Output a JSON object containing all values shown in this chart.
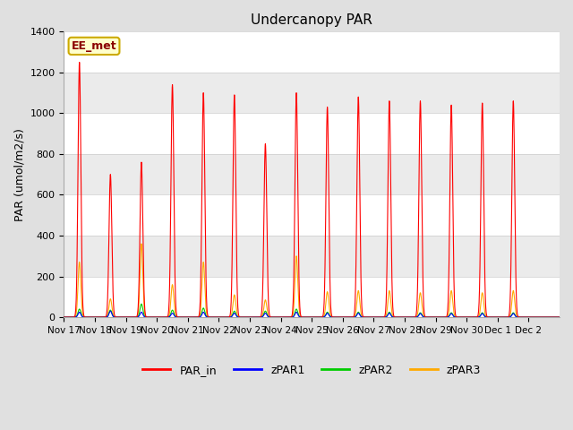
{
  "title": "Undercanopy PAR",
  "ylabel": "PAR (umol/m2/s)",
  "ylim": [
    0,
    1400
  ],
  "yticks": [
    0,
    200,
    400,
    600,
    800,
    1000,
    1200,
    1400
  ],
  "fig_bg": "#e0e0e0",
  "plot_bg": "#ffffff",
  "band_color": "#ebebeb",
  "annotation_text": "EE_met",
  "annotation_bg": "#ffffcc",
  "annotation_border": "#ccaa00",
  "legend_items": [
    "PAR_in",
    "zPAR1",
    "zPAR2",
    "zPAR3"
  ],
  "line_colors": {
    "PAR_in": "#ff0000",
    "zPAR1": "#0000ff",
    "zPAR2": "#00cc00",
    "zPAR3": "#ffaa00"
  },
  "days": [
    "Nov 17",
    "Nov 18",
    "Nov 19",
    "Nov 20",
    "Nov 21",
    "Nov 22",
    "Nov 23",
    "Nov 24",
    "Nov 25",
    "Nov 26",
    "Nov 27",
    "Nov 28",
    "Nov 29",
    "Nov 30",
    "Dec 1",
    "Dec 2"
  ],
  "n_days": 16,
  "PAR_in_day_peaks": [
    1250,
    700,
    760,
    1140,
    1100,
    1090,
    850,
    1100,
    1030,
    1080,
    1060,
    1060,
    1040,
    1050,
    1060,
    0
  ],
  "zPAR3_day_peaks": [
    270,
    90,
    360,
    160,
    270,
    110,
    85,
    300,
    125,
    130,
    130,
    120,
    130,
    120,
    130,
    0
  ],
  "zPAR2_day_peaks": [
    40,
    35,
    65,
    35,
    45,
    30,
    30,
    40,
    25,
    25,
    25,
    22,
    22,
    22,
    22,
    0
  ],
  "zPAR1_day_peaks": [
    25,
    30,
    25,
    20,
    25,
    20,
    20,
    25,
    20,
    20,
    20,
    18,
    18,
    18,
    18,
    0
  ]
}
